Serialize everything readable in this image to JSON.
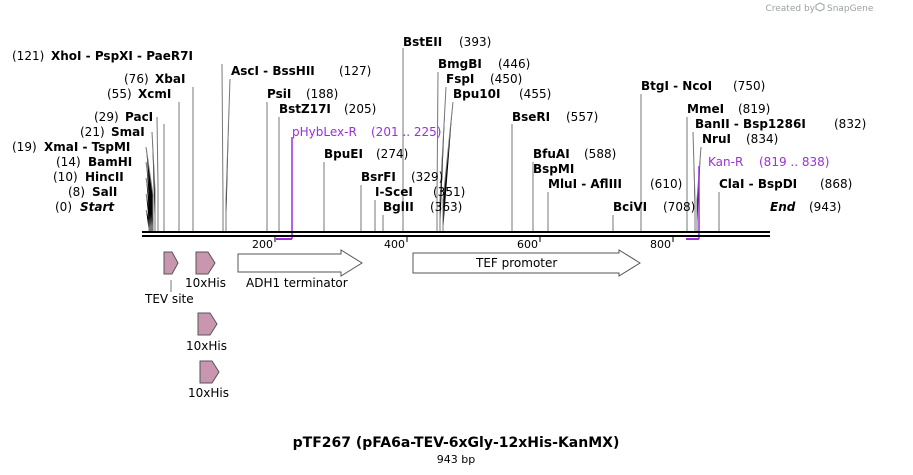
{
  "credit": {
    "text": "Created by",
    "brand": "SnapGene"
  },
  "title": "pTF267 (pFA6a-TEV-6xGly-12xHis-KanMX)",
  "length": "943 bp",
  "ticks": [
    "200",
    "400",
    "600",
    "800"
  ],
  "markers": {
    "start": {
      "name": "Start",
      "pos": "(0)"
    },
    "end": {
      "name": "End",
      "pos": "(943)"
    }
  },
  "sites": [
    {
      "name": "SalI",
      "pos": "(8)"
    },
    {
      "name": "HincII",
      "pos": "(10)"
    },
    {
      "name": "BamHI",
      "pos": "(14)"
    },
    {
      "name": "XmaI  -  TspMI",
      "pos": "(19)"
    },
    {
      "name": "SmaI",
      "pos": "(21)"
    },
    {
      "name": "PacI",
      "pos": "(29)"
    },
    {
      "name": "XcmI",
      "pos": "(55)"
    },
    {
      "name": "XbaI",
      "pos": "(76)"
    },
    {
      "name": "XhoI  -  PspXI  -  PaeR7I",
      "pos": "(121)"
    },
    {
      "name": "AscI  -  BssHII",
      "pos": "(127)"
    },
    {
      "name": "PsiI",
      "pos": "(188)"
    },
    {
      "name": "BstZ17I",
      "pos": "(205)"
    },
    {
      "name": "BpuEI",
      "pos": "(274)"
    },
    {
      "name": "BsrFI",
      "pos": "(329)"
    },
    {
      "name": "I-SceI",
      "pos": "(351)"
    },
    {
      "name": "BglII",
      "pos": "(363)"
    },
    {
      "name": "BstEII",
      "pos": "(393)"
    },
    {
      "name": "BmgBI",
      "pos": "(446)"
    },
    {
      "name": "FspI",
      "pos": "(450)"
    },
    {
      "name": "Bpu10I",
      "pos": "(455)"
    },
    {
      "name": "BseRI",
      "pos": "(557)"
    },
    {
      "name": "BfuAI",
      "pos": "(588)"
    },
    {
      "name": "BspMI",
      "pos": ""
    },
    {
      "name": "MluI  -  AflIII",
      "pos": "(610)"
    },
    {
      "name": "BciVI",
      "pos": "(708)"
    },
    {
      "name": "BtgI  -  NcoI",
      "pos": "(750)"
    },
    {
      "name": "MmeI",
      "pos": "(819)"
    },
    {
      "name": "BanII  -  Bsp1286I",
      "pos": "(832)"
    },
    {
      "name": "NruI",
      "pos": "(834)"
    },
    {
      "name": "ClaI  -  BspDI",
      "pos": "(868)"
    }
  ],
  "primers": [
    {
      "name": "pHybLex-R",
      "range": "(201 .. 225)"
    },
    {
      "name": "Kan-R",
      "range": "(819 .. 838)"
    }
  ],
  "features": [
    {
      "name": "TEV site"
    },
    {
      "name": "10xHis"
    },
    {
      "name": "10xHis"
    },
    {
      "name": "10xHis"
    },
    {
      "name": "ADH1 terminator"
    },
    {
      "name": "TEF promoter"
    }
  ],
  "colors": {
    "primer": "#9b30d9",
    "feature_small": "#c996b0",
    "backbone": "#000000"
  }
}
